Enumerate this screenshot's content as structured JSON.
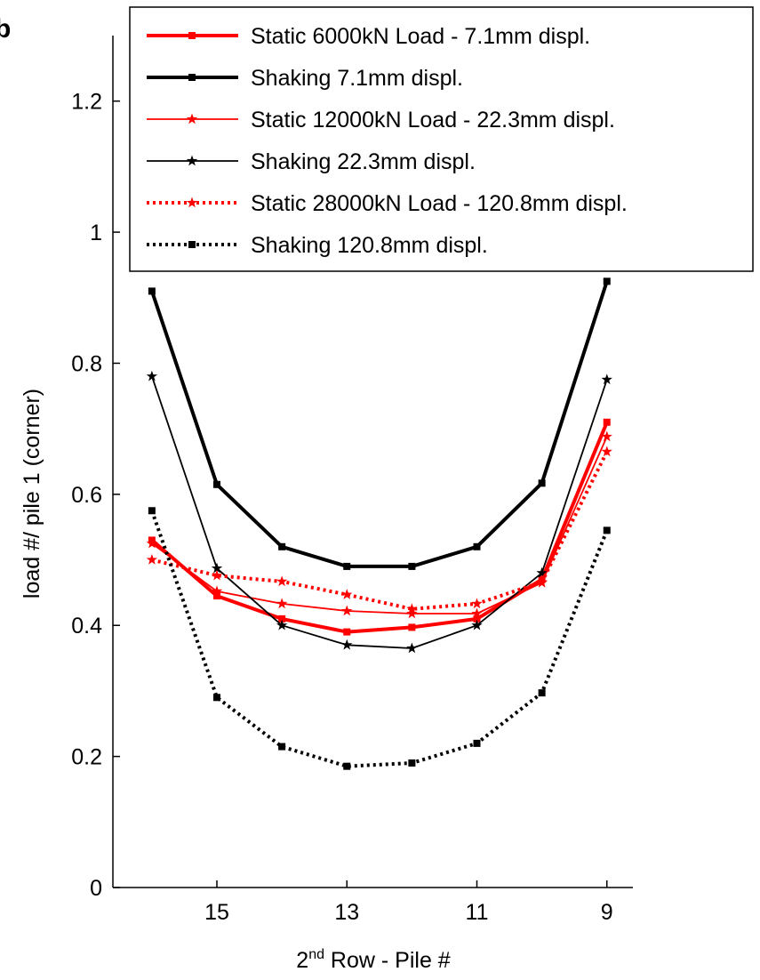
{
  "panel_label": "b",
  "chart_data": {
    "type": "line",
    "title": "",
    "xlabel_prefix": "2",
    "xlabel_superscript": "nd",
    "xlabel_suffix": " Row - Pile #",
    "ylabel": "load #/ pile 1 (corner)",
    "xlim": [
      16.6,
      8.6
    ],
    "ylim": [
      0,
      1.3
    ],
    "x_reversed": true,
    "x_ticks": [
      15,
      13,
      11,
      9
    ],
    "y_ticks": [
      0,
      0.2,
      0.4,
      0.6,
      0.8,
      1,
      1.2
    ],
    "y_tick_labels": [
      "0",
      "0.2",
      "0.4",
      "0.6",
      "0.8",
      "1",
      "1.2"
    ],
    "grid": false,
    "legend_position": "top-right",
    "x": [
      16,
      15,
      14,
      13,
      12,
      11,
      10,
      9
    ],
    "series": [
      {
        "name": "Static 6000kN Load - 7.1mm displ.",
        "color": "#ff0000",
        "line_style": "solid",
        "line_width": "thick",
        "marker": "square",
        "values": [
          0.53,
          0.445,
          0.41,
          0.39,
          0.397,
          0.41,
          0.47,
          0.71
        ]
      },
      {
        "name": "Shaking 7.1mm displ.",
        "color": "#000000",
        "line_style": "solid",
        "line_width": "thick",
        "marker": "square",
        "values": [
          0.91,
          0.615,
          0.52,
          0.49,
          0.49,
          0.52,
          0.617,
          0.925
        ]
      },
      {
        "name": "Static 12000kN Load - 22.3mm displ.",
        "color": "#ff0000",
        "line_style": "solid",
        "line_width": "thin",
        "marker": "star",
        "values": [
          0.525,
          0.452,
          0.433,
          0.422,
          0.418,
          0.418,
          0.465,
          0.688
        ]
      },
      {
        "name": "Shaking 22.3mm displ.",
        "color": "#000000",
        "line_style": "solid",
        "line_width": "thin",
        "marker": "star",
        "values": [
          0.78,
          0.487,
          0.4,
          0.37,
          0.365,
          0.4,
          0.48,
          0.775
        ]
      },
      {
        "name": "Static 28000kN Load - 120.8mm displ.",
        "color": "#ff0000",
        "line_style": "dotted",
        "line_width": "thick",
        "marker": "star",
        "values": [
          0.5,
          0.476,
          0.467,
          0.447,
          0.425,
          0.433,
          0.466,
          0.665
        ]
      },
      {
        "name": "Shaking 120.8mm displ.",
        "color": "#000000",
        "line_style": "dotted",
        "line_width": "thick",
        "marker": "square",
        "values": [
          0.575,
          0.29,
          0.215,
          0.185,
          0.19,
          0.22,
          0.297,
          0.545
        ]
      }
    ]
  }
}
